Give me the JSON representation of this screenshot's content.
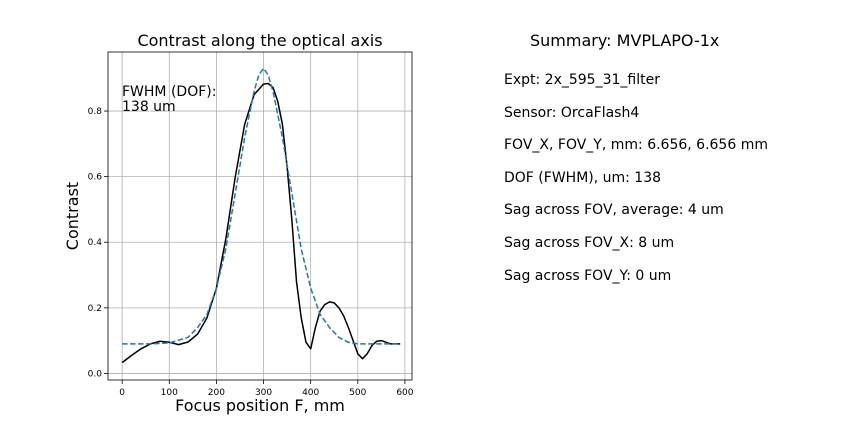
{
  "chart_data": {
    "type": "line",
    "title": "Contrast along the optical axis",
    "xlabel": "Focus position F, mm",
    "ylabel": "Contrast",
    "xlim": [
      -30,
      615
    ],
    "ylim": [
      -0.02,
      0.98
    ],
    "xticks": [
      0,
      100,
      200,
      300,
      400,
      500,
      600
    ],
    "yticks": [
      0.0,
      0.2,
      0.4,
      0.6,
      0.8
    ],
    "grid": true,
    "annotation": {
      "line1": "FWHM (DOF):",
      "line2": "138 um"
    },
    "series": [
      {
        "style": "solid",
        "color": "#000000",
        "x": [
          0,
          20,
          40,
          60,
          80,
          100,
          120,
          140,
          160,
          180,
          200,
          220,
          240,
          260,
          280,
          300,
          310,
          320,
          330,
          340,
          350,
          360,
          370,
          380,
          390,
          400,
          410,
          420,
          430,
          440,
          450,
          460,
          470,
          480,
          490,
          500,
          510,
          520,
          530,
          540,
          550,
          560,
          570,
          580,
          590
        ],
        "y": [
          0.033,
          0.055,
          0.075,
          0.09,
          0.098,
          0.095,
          0.088,
          0.096,
          0.12,
          0.17,
          0.26,
          0.41,
          0.6,
          0.76,
          0.85,
          0.882,
          0.884,
          0.872,
          0.83,
          0.76,
          0.63,
          0.47,
          0.28,
          0.17,
          0.095,
          0.075,
          0.14,
          0.19,
          0.21,
          0.218,
          0.215,
          0.2,
          0.175,
          0.14,
          0.1,
          0.06,
          0.045,
          0.06,
          0.085,
          0.098,
          0.1,
          0.095,
          0.09,
          0.09,
          0.09
        ]
      },
      {
        "style": "dashed",
        "color": "#1f77b4",
        "x": [
          0,
          60,
          100,
          140,
          160,
          180,
          200,
          220,
          240,
          260,
          280,
          290,
          300,
          310,
          320,
          340,
          360,
          380,
          400,
          420,
          440,
          460,
          480,
          500,
          540,
          590
        ],
        "y": [
          0.09,
          0.09,
          0.093,
          0.11,
          0.14,
          0.18,
          0.26,
          0.38,
          0.55,
          0.72,
          0.86,
          0.91,
          0.93,
          0.91,
          0.86,
          0.72,
          0.55,
          0.38,
          0.26,
          0.18,
          0.14,
          0.11,
          0.095,
          0.09,
          0.09,
          0.09
        ]
      }
    ]
  },
  "summary": {
    "title": "Summary: MVPLAPO-1x",
    "lines": [
      "Expt: 2x_595_31_filter",
      "Sensor: OrcaFlash4",
      "FOV_X, FOV_Y, mm: 6.656, 6.656 mm",
      "DOF (FWHM), um: 138",
      "Sag across FOV, average: 4 um",
      "Sag across FOV_X: 8 um",
      "Sag across FOV_Y: 0 um"
    ]
  }
}
